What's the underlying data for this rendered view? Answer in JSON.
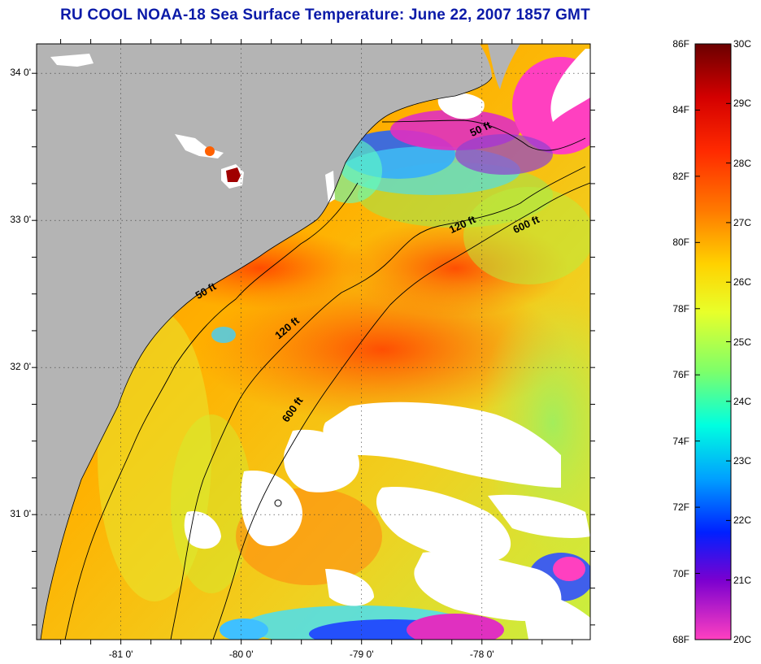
{
  "title": "RU COOL  NOAA-18  Sea Surface Temperature:  June 22, 2007 1857 GMT",
  "map": {
    "lon_range": [
      -81.7,
      -77.1
    ],
    "lat_range": [
      30.15,
      34.2
    ],
    "lat_ticks": [
      {
        "value": 34,
        "label": "34 0'"
      },
      {
        "value": 33,
        "label": "33 0'"
      },
      {
        "value": 32,
        "label": "32 0'"
      },
      {
        "value": 31,
        "label": "31 0'"
      }
    ],
    "lon_ticks": [
      {
        "value": -81,
        "label": "-81 0'"
      },
      {
        "value": -80,
        "label": "-80 0'"
      },
      {
        "value": -79,
        "label": "-79 0'"
      },
      {
        "value": -78,
        "label": "-78 0'"
      }
    ],
    "contour_labels": [
      {
        "text": "50 ft",
        "lon": -78.0,
        "lat": 33.6
      },
      {
        "text": "120 ft",
        "lon": -78.15,
        "lat": 32.95
      },
      {
        "text": "600 ft",
        "lon": -77.62,
        "lat": 32.95
      },
      {
        "text": "50 ft",
        "lon": -80.28,
        "lat": 32.5
      },
      {
        "text": "120 ft",
        "lon": -79.6,
        "lat": 32.25
      },
      {
        "text": "600 ft",
        "lon": -79.55,
        "lat": 31.7
      }
    ],
    "colors": {
      "land": "#b4b4b4",
      "cloud": "#ffffff",
      "contour": "#000000"
    }
  },
  "colorbar": {
    "fahrenheit": [
      "86F",
      "84F",
      "82F",
      "80F",
      "78F",
      "76F",
      "74F",
      "72F",
      "70F",
      "68F"
    ],
    "celsius": [
      "30C",
      "29C",
      "28C",
      "27C",
      "26C",
      "25C",
      "24C",
      "23C",
      "22C",
      "21C",
      "20C"
    ],
    "gradient": [
      "#6b0000",
      "#d40000",
      "#ff2a00",
      "#ff7a00",
      "#ffd200",
      "#e8ff2a",
      "#7dff6a",
      "#00ffe0",
      "#00a0ff",
      "#0020ff",
      "#7a00d0",
      "#ff40c0"
    ]
  }
}
